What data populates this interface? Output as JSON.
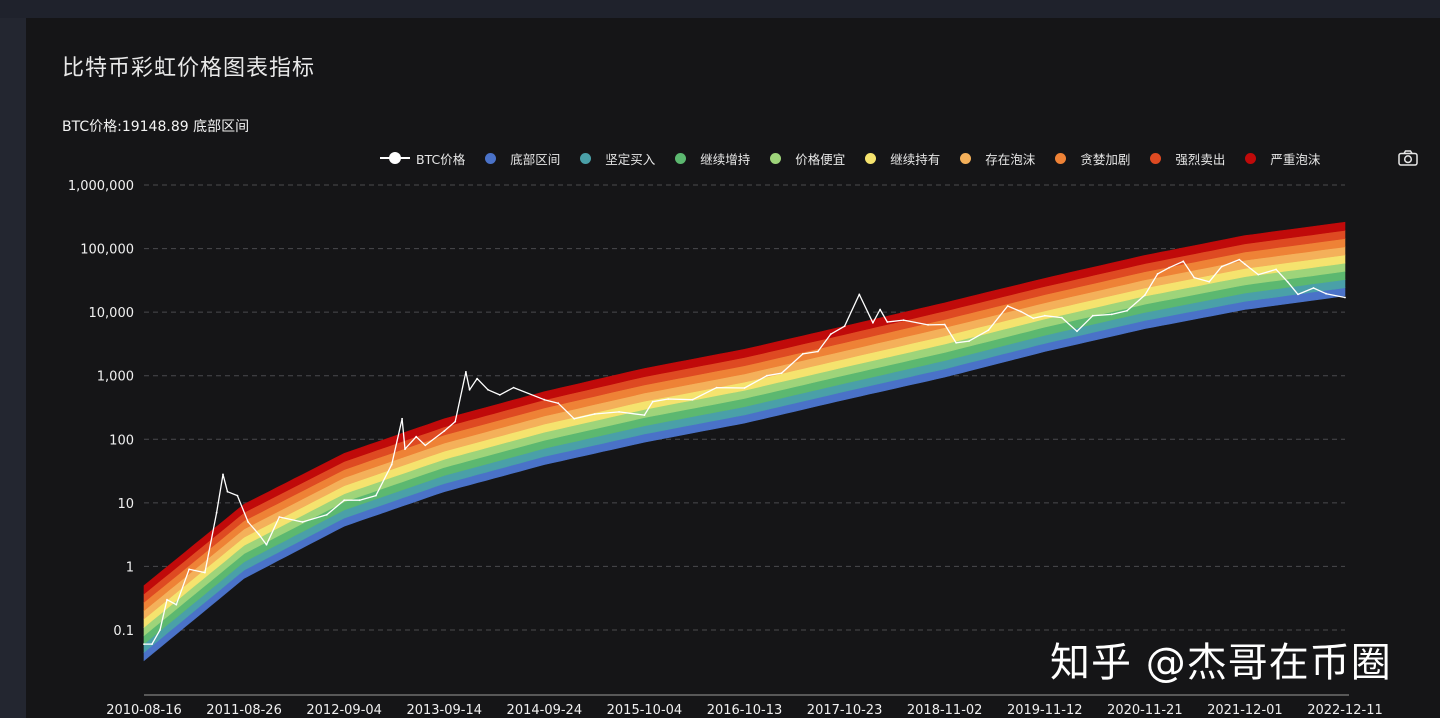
{
  "title": "比特币彩虹价格图表指标",
  "price_line": "BTC价格:19148.89 底部区间",
  "watermark": "知乎 @杰哥在币圈",
  "camera_icon": "camera-icon",
  "legend": [
    {
      "label": "BTC价格",
      "color": "#ffffff",
      "kind": "line"
    },
    {
      "label": "底部区间",
      "color": "#4a72c8",
      "kind": "dot"
    },
    {
      "label": "坚定买入",
      "color": "#4aa0a8",
      "kind": "dot"
    },
    {
      "label": "继续增持",
      "color": "#5cb870",
      "kind": "dot"
    },
    {
      "label": "价格便宜",
      "color": "#9ed47a",
      "kind": "dot"
    },
    {
      "label": "继续持有",
      "color": "#f5e36e",
      "kind": "dot"
    },
    {
      "label": "存在泡沫",
      "color": "#f4b05a",
      "kind": "dot"
    },
    {
      "label": "贪婪加剧",
      "color": "#ee8236",
      "kind": "dot"
    },
    {
      "label": "强烈卖出",
      "color": "#de4a22",
      "kind": "dot"
    },
    {
      "label": "严重泡沫",
      "color": "#c00a0a",
      "kind": "dot"
    }
  ],
  "chart_data": {
    "type": "area",
    "title": "比特币彩虹价格图表指标",
    "y_scale": "log",
    "ylim": [
      0.1,
      1000000
    ],
    "y_ticks": [
      {
        "value": 1000000,
        "label": "1,000,000"
      },
      {
        "value": 100000,
        "label": "100,000"
      },
      {
        "value": 10000,
        "label": "10,000"
      },
      {
        "value": 1000,
        "label": "1,000"
      },
      {
        "value": 100,
        "label": "100"
      },
      {
        "value": 10,
        "label": "10"
      },
      {
        "value": 1,
        "label": "1"
      },
      {
        "value": 0.1,
        "label": "0.1"
      }
    ],
    "x_ticks": [
      "2010-08-16",
      "2011-08-26",
      "2012-09-04",
      "2013-09-14",
      "2014-09-24",
      "2015-10-04",
      "2016-10-13",
      "2017-10-23",
      "2018-11-02",
      "2019-11-12",
      "2020-11-21",
      "2021-12-01",
      "2022-12-11"
    ],
    "xlim": [
      "2010-08-16",
      "2022-12-11"
    ],
    "grid": true,
    "legend_position": "top-right",
    "bands": {
      "names": [
        "底部区间",
        "坚定买入",
        "继续增持",
        "价格便宜",
        "继续持有",
        "存在泡沫",
        "贪婪加剧",
        "强烈卖出",
        "严重泡沫"
      ],
      "x": [
        "2010-08-16",
        "2011-08-26",
        "2012-09-04",
        "2013-09-14",
        "2014-09-24",
        "2015-10-04",
        "2016-10-13",
        "2017-10-23",
        "2018-11-02",
        "2019-11-12",
        "2020-11-21",
        "2021-12-01",
        "2022-12-11"
      ],
      "lower_bound": [
        0.033,
        0.65,
        4.3,
        15,
        40,
        90,
        180,
        420,
        950,
        2400,
        5500,
        11000,
        18000
      ],
      "upper_bound": [
        0.5,
        9.5,
        60,
        210,
        560,
        1300,
        2600,
        6000,
        14000,
        34000,
        78000,
        160000,
        260000
      ]
    },
    "series": [
      {
        "name": "BTC价格",
        "x": [
          "2010-08-16",
          "2010-09-15",
          "2010-10-15",
          "2010-11-10",
          "2010-12-15",
          "2011-02-01",
          "2011-04-01",
          "2011-05-15",
          "2011-06-08",
          "2011-06-25",
          "2011-08-01",
          "2011-09-10",
          "2011-10-20",
          "2011-11-18",
          "2012-01-05",
          "2012-04-01",
          "2012-07-01",
          "2012-09-04",
          "2012-11-01",
          "2013-01-01",
          "2013-03-01",
          "2013-04-09",
          "2013-04-20",
          "2013-06-01",
          "2013-07-05",
          "2013-09-14",
          "2013-10-25",
          "2013-12-04",
          "2013-12-18",
          "2014-01-15",
          "2014-02-25",
          "2014-04-10",
          "2014-06-01",
          "2014-09-24",
          "2014-11-15",
          "2015-01-14",
          "2015-04-01",
          "2015-07-01",
          "2015-10-04",
          "2015-11-04",
          "2016-01-01",
          "2016-04-01",
          "2016-07-01",
          "2016-10-13",
          "2017-01-05",
          "2017-03-01",
          "2017-05-20",
          "2017-07-15",
          "2017-09-01",
          "2017-10-23",
          "2017-12-17",
          "2018-02-06",
          "2018-03-05",
          "2018-04-01",
          "2018-06-01",
          "2018-09-01",
          "2018-11-02",
          "2018-12-15",
          "2019-02-01",
          "2019-04-15",
          "2019-06-26",
          "2019-08-15",
          "2019-09-30",
          "2019-11-12",
          "2020-01-15",
          "2020-03-12",
          "2020-05-10",
          "2020-07-20",
          "2020-09-15",
          "2020-11-21",
          "2021-01-08",
          "2021-02-20",
          "2021-04-14",
          "2021-05-25",
          "2021-07-20",
          "2021-09-05",
          "2021-11-10",
          "2021-12-01",
          "2022-01-20",
          "2022-03-28",
          "2022-05-10",
          "2022-06-18",
          "2022-08-15",
          "2022-10-01",
          "2022-12-11"
        ],
        "y": [
          0.06,
          0.06,
          0.1,
          0.3,
          0.25,
          0.9,
          0.8,
          7,
          28,
          15,
          13,
          5,
          3.2,
          2.2,
          6,
          5,
          6.5,
          11,
          11,
          13,
          40,
          210,
          70,
          110,
          80,
          135,
          190,
          1150,
          600,
          900,
          600,
          500,
          650,
          420,
          370,
          210,
          250,
          270,
          240,
          390,
          430,
          420,
          650,
          640,
          1000,
          1100,
          2200,
          2400,
          4500,
          6000,
          19000,
          6800,
          11000,
          7000,
          7500,
          6300,
          6400,
          3300,
          3500,
          5200,
          12500,
          10200,
          8000,
          8800,
          8200,
          5000,
          8800,
          9200,
          10500,
          18500,
          40000,
          50000,
          63000,
          35000,
          30000,
          52000,
          67000,
          57000,
          39000,
          47000,
          30000,
          19000,
          24000,
          19500,
          17000
        ]
      }
    ]
  }
}
